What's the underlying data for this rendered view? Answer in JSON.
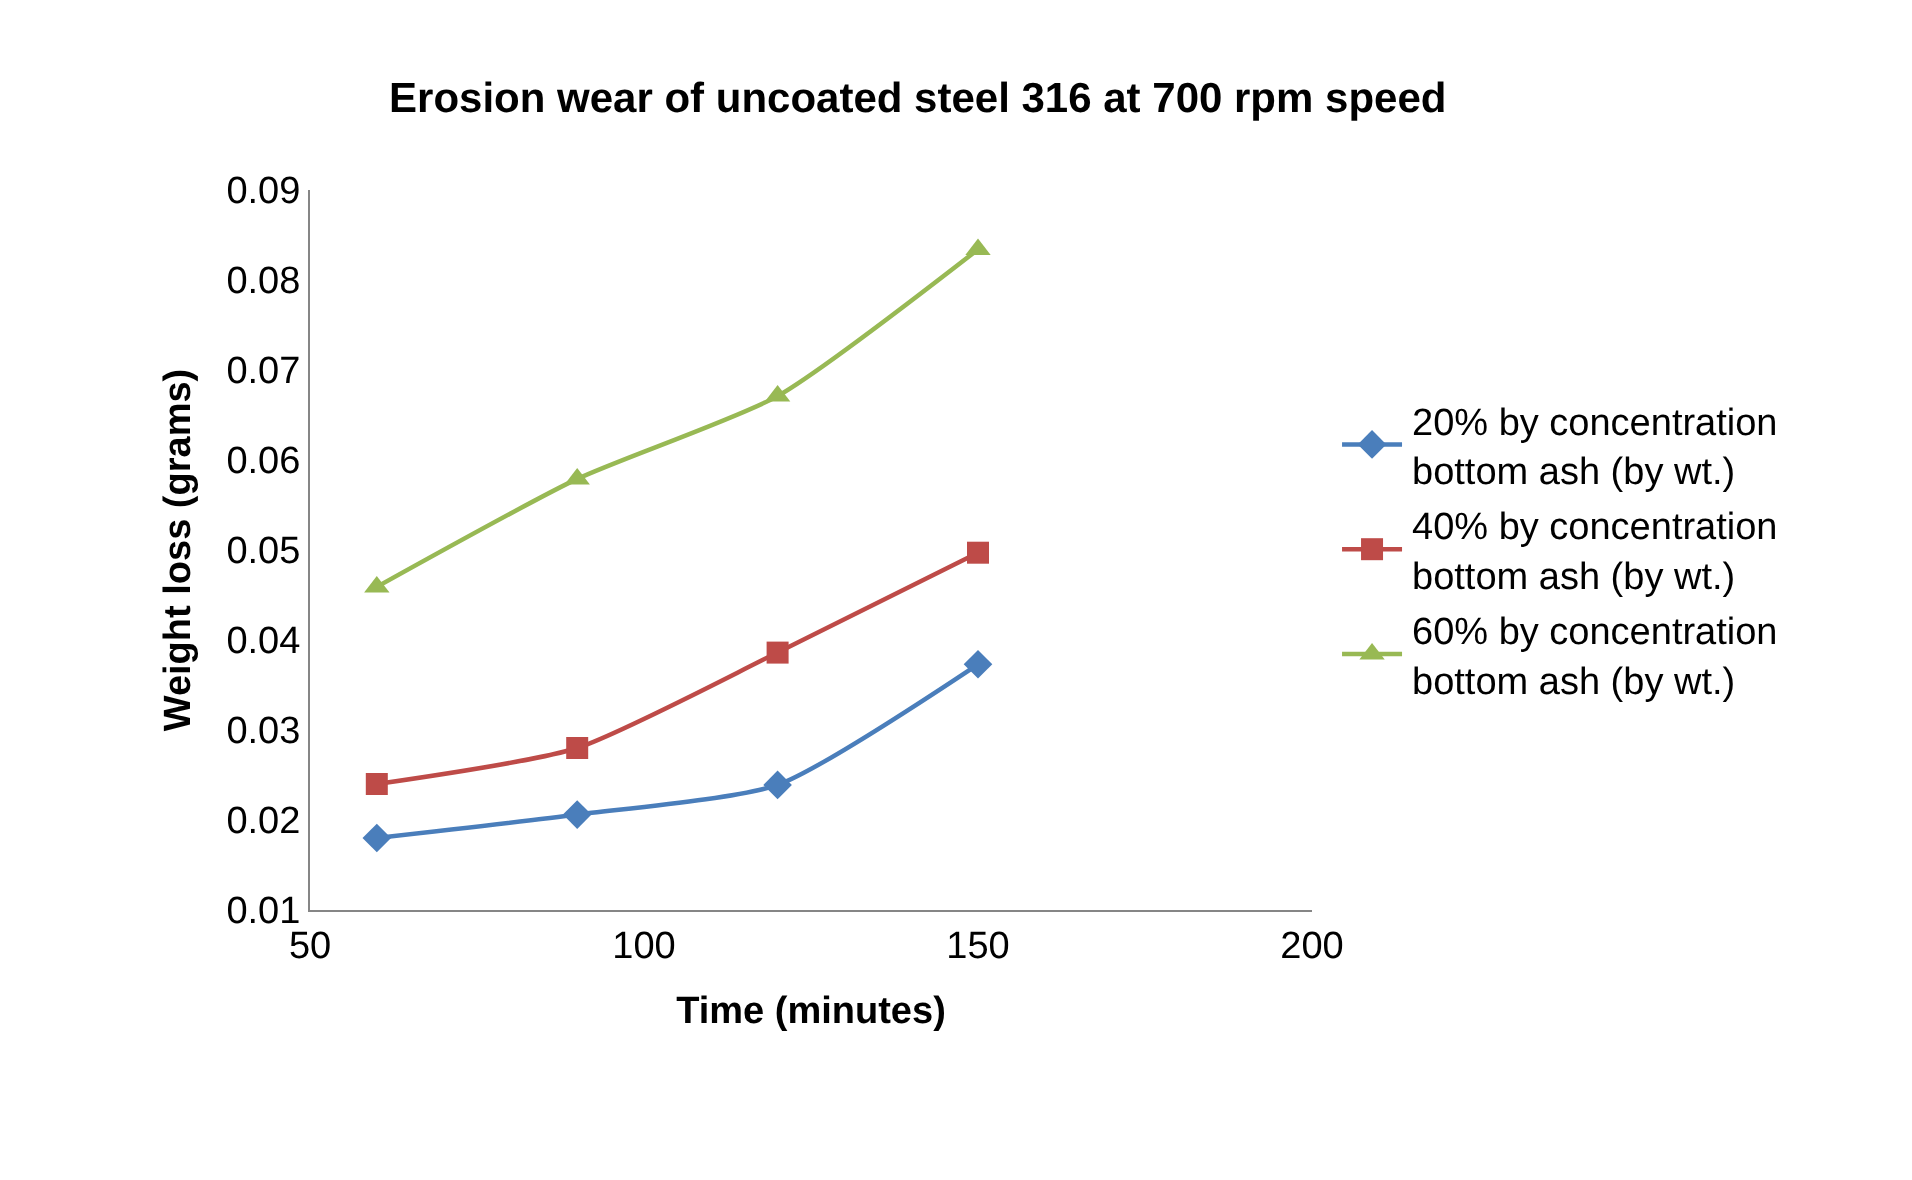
{
  "chart_data": {
    "type": "line",
    "title": "Erosion wear of uncoated steel 316 at 700 rpm speed",
    "xlabel": "Time (minutes)",
    "ylabel": "Weight loss (grams)",
    "x": [
      60,
      90,
      120,
      150
    ],
    "series": [
      {
        "name": "20% by concentration bottom ash (by wt.)",
        "color": "#4a7ebb",
        "marker": "diamond",
        "values": [
          0.018,
          0.0206,
          0.0239,
          0.0373
        ]
      },
      {
        "name": "40% by concentration bottom ash (by wt.)",
        "color": "#be4b48",
        "marker": "square",
        "values": [
          0.024,
          0.028,
          0.0386,
          0.0497
        ]
      },
      {
        "name": "60% by concentration bottom ash (by wt.)",
        "color": "#98b954",
        "marker": "triangle",
        "values": [
          0.0459,
          0.0579,
          0.0671,
          0.0834
        ]
      }
    ],
    "xlim": [
      50,
      200
    ],
    "xticks": [
      50,
      100,
      150,
      200
    ],
    "ylim": [
      0.01,
      0.09
    ],
    "yticks": [
      0.01,
      0.02,
      0.03,
      0.04,
      0.05,
      0.06,
      0.07,
      0.08,
      0.09
    ],
    "grid": false,
    "legend": "right",
    "line_style": "solid"
  }
}
